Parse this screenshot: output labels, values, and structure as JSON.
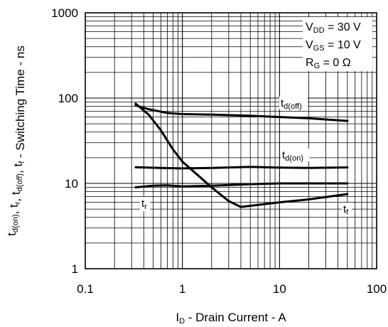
{
  "chart_data": {
    "type": "line",
    "xscale": "log",
    "yscale": "log",
    "xlim": [
      0.1,
      100
    ],
    "ylim": [
      1,
      1000
    ],
    "grid": true,
    "xlabel": {
      "main": "I",
      "sub": "D",
      "rest": " - Drain Current - A"
    },
    "ylabel": {
      "parts": [
        {
          "t": "t",
          "s": "d(on)"
        },
        {
          "t": ", t",
          "s": "r"
        },
        {
          "t": ", t",
          "s": "d(off)"
        },
        {
          "t": ", t",
          "s": "f"
        },
        {
          "t": " - Switching Time - ns",
          "s": ""
        }
      ]
    },
    "x_ticks": [
      {
        "value": 0.1,
        "label": "0.1"
      },
      {
        "value": 1,
        "label": "1"
      },
      {
        "value": 10,
        "label": "10"
      },
      {
        "value": 100,
        "label": "100"
      }
    ],
    "y_ticks": [
      {
        "value": 1,
        "label": "1"
      },
      {
        "value": 10,
        "label": "10"
      },
      {
        "value": 100,
        "label": "100"
      },
      {
        "value": 1000,
        "label": "1000"
      }
    ],
    "conditions": [
      {
        "main": "V",
        "sub": "DD",
        "rest": " = 30 V"
      },
      {
        "main": "V",
        "sub": "GS",
        "rest": " = 10 V"
      },
      {
        "main": "R",
        "sub": "G",
        "rest": " = 0 Ω"
      }
    ],
    "series": [
      {
        "name": {
          "main": "t",
          "sub": "d(off)"
        },
        "x": [
          0.33,
          0.45,
          0.7,
          1.0,
          2.0,
          5.0,
          10,
          20,
          50
        ],
        "y": [
          82,
          74,
          67,
          65,
          64,
          62,
          60,
          58,
          54
        ]
      },
      {
        "name": {
          "main": "t",
          "sub": "d(on)"
        },
        "x": [
          0.33,
          0.6,
          1.0,
          2.0,
          5.0,
          10,
          20,
          50
        ],
        "y": [
          15.5,
          15.2,
          15.0,
          15.2,
          15.6,
          15.3,
          15.2,
          15.4
        ]
      },
      {
        "name": {
          "main": "t",
          "sub": "r"
        },
        "x": [
          0.33,
          0.5,
          0.7,
          1.0,
          2.0,
          5.0,
          10,
          20,
          50
        ],
        "y": [
          9.0,
          9.4,
          9.5,
          9.2,
          9.4,
          9.8,
          10.0,
          10.0,
          10.0
        ]
      },
      {
        "name": {
          "main": "t",
          "sub": "f"
        },
        "x": [
          0.33,
          0.45,
          0.6,
          0.8,
          1.0,
          1.5,
          2.0,
          3.0,
          4.0,
          6.0,
          10,
          20,
          50
        ],
        "y": [
          86,
          64,
          42,
          25,
          18,
          12,
          9.0,
          6.2,
          5.3,
          5.6,
          6.0,
          6.5,
          7.5
        ]
      }
    ]
  }
}
